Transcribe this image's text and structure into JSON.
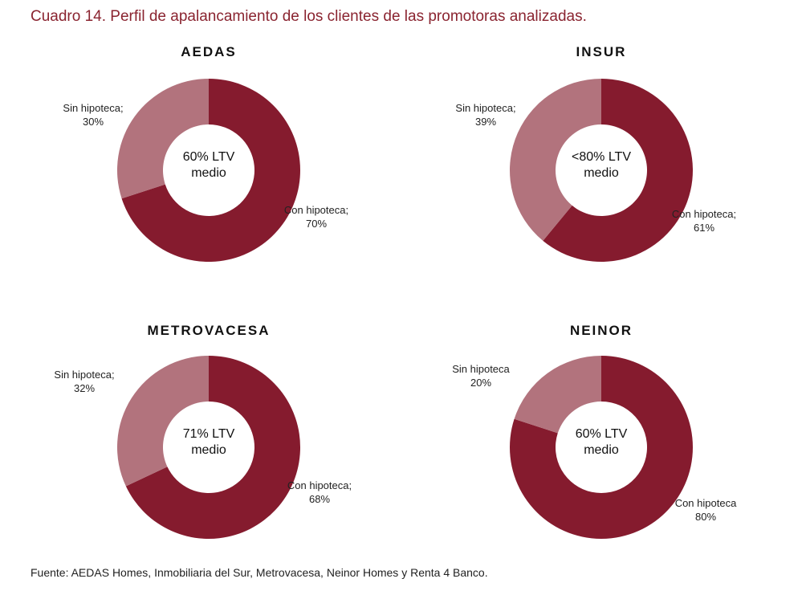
{
  "title": "Cuadro 14. Perfil de apalancamiento de los clientes de las promotoras analizadas.",
  "source": "Fuente: AEDAS Homes, Inmobiliaria del Sur, Metrovacesa, Neinor Homes y Renta 4 Banco.",
  "colors": {
    "con": "#851b2e",
    "sin": "#b2737d",
    "title": "#8a2430"
  },
  "chart_data": [
    {
      "type": "pie",
      "title": "AEDAS",
      "center_label": [
        "60% LTV",
        "medio"
      ],
      "slices": [
        {
          "label": "Con hipoteca;",
          "value": 70,
          "value_label": "70%"
        },
        {
          "label": "Sin hipoteca;",
          "value": 30,
          "value_label": "30%"
        }
      ]
    },
    {
      "type": "pie",
      "title": "INSUR",
      "center_label": [
        "<80% LTV",
        "medio"
      ],
      "slices": [
        {
          "label": "Con hipoteca;",
          "value": 61,
          "value_label": "61%"
        },
        {
          "label": "Sin hipoteca;",
          "value": 39,
          "value_label": "39%"
        }
      ]
    },
    {
      "type": "pie",
      "title": "METROVACESA",
      "center_label": [
        "71% LTV",
        "medio"
      ],
      "slices": [
        {
          "label": "Con hipoteca;",
          "value": 68,
          "value_label": "68%"
        },
        {
          "label": "Sin hipoteca;",
          "value": 32,
          "value_label": "32%"
        }
      ]
    },
    {
      "type": "pie",
      "title": "NEINOR",
      "center_label": [
        "60% LTV",
        "medio"
      ],
      "slices": [
        {
          "label": "Con hipoteca",
          "value": 80,
          "value_label": "80%"
        },
        {
          "label": "Sin hipoteca",
          "value": 20,
          "value_label": "20%"
        }
      ]
    }
  ]
}
